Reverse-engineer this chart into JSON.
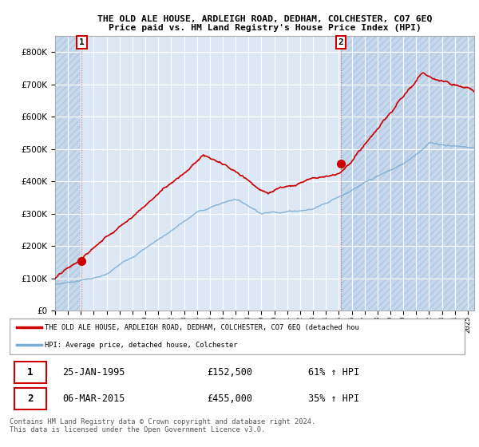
{
  "title_line1": "THE OLD ALE HOUSE, ARDLEIGH ROAD, DEDHAM, COLCHESTER, CO7 6EQ",
  "title_line2": "Price paid vs. HM Land Registry's House Price Index (HPI)",
  "ylim": [
    0,
    850000
  ],
  "yticks": [
    0,
    100000,
    200000,
    300000,
    400000,
    500000,
    600000,
    700000,
    800000
  ],
  "ytick_labels": [
    "£0",
    "£100K",
    "£200K",
    "£300K",
    "£400K",
    "£500K",
    "£600K",
    "£700K",
    "£800K"
  ],
  "sale1_date": 1995.07,
  "sale1_price": 152500,
  "sale2_date": 2015.17,
  "sale2_price": 455000,
  "xlim_start": 1993.0,
  "xlim_end": 2025.5,
  "background_color": "#dce8f5",
  "hatch_color": "#c5d8ec",
  "red_line_color": "#cc0000",
  "blue_line_color": "#7aadd4",
  "sale_dot_color": "#cc0000",
  "legend_red_label": "THE OLD ALE HOUSE, ARDLEIGH ROAD, DEDHAM, COLCHESTER, CO7 6EQ (detached hou",
  "legend_blue_label": "HPI: Average price, detached house, Colchester",
  "note1_date": "25-JAN-1995",
  "note1_price": "£152,500",
  "note1_hpi": "61% ↑ HPI",
  "note2_date": "06-MAR-2015",
  "note2_price": "£455,000",
  "note2_hpi": "35% ↑ HPI",
  "footnote": "Contains HM Land Registry data © Crown copyright and database right 2024.\nThis data is licensed under the Open Government Licence v3.0."
}
